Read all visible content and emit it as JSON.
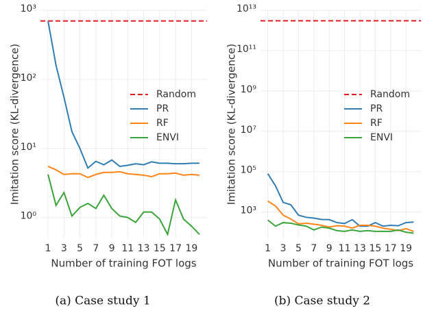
{
  "chart_data": [
    {
      "type": "line",
      "caption": "(a) Case study 1",
      "xlabel": "Number of training FOT logs",
      "ylabel": "Imitation score (KL-divergence)",
      "log_y": true,
      "grid": true,
      "legend": "center right",
      "x": [
        1,
        2,
        3,
        4,
        5,
        6,
        7,
        8,
        9,
        10,
        11,
        12,
        13,
        14,
        15,
        16,
        17,
        18,
        19,
        20
      ],
      "xlim": [
        0.05,
        20.95
      ],
      "xticks": [
        1,
        3,
        5,
        7,
        9,
        11,
        13,
        15,
        17,
        19
      ],
      "ylim": [
        0.5,
        1000
      ],
      "yticks": [
        {
          "value": 1,
          "label": "10⁰"
        },
        {
          "value": 10,
          "label": "10¹"
        },
        {
          "value": 100,
          "label": "10²"
        },
        {
          "value": 1000,
          "label": "10³"
        }
      ],
      "series": [
        {
          "name": "Random",
          "color": "#e8191c",
          "value": 700
        },
        {
          "name": "PR",
          "color": "#2f7cb3",
          "values": [
            700,
            160,
            55,
            17.5,
            10,
            5.2,
            6.5,
            5.8,
            6.8,
            5.5,
            5.7,
            6.0,
            5.8,
            6.4,
            6.1,
            6.1,
            6.0,
            6.0,
            6.1,
            6.1
          ]
        },
        {
          "name": "RF",
          "color": "#ff8418",
          "values": [
            5.5,
            4.9,
            4.2,
            4.3,
            4.3,
            3.8,
            4.2,
            4.5,
            4.5,
            4.6,
            4.3,
            4.2,
            4.1,
            3.9,
            4.3,
            4.3,
            4.4,
            4.1,
            4.2,
            4.1
          ]
        },
        {
          "name": "ENVI",
          "color": "#3aa43a",
          "values": [
            4.2,
            1.5,
            2.3,
            1.05,
            1.4,
            1.6,
            1.35,
            2.1,
            1.35,
            1.05,
            1.0,
            0.85,
            1.2,
            1.2,
            0.95,
            0.57,
            1.8,
            0.95,
            0.75,
            0.57
          ]
        }
      ]
    },
    {
      "type": "line",
      "caption": "(b) Case study 2",
      "xlabel": "Number of training FOT logs",
      "ylabel": "Imitation score (KL-divergence)",
      "log_y": true,
      "grid": true,
      "legend": "center right",
      "x": [
        1,
        2,
        3,
        4,
        5,
        6,
        7,
        8,
        9,
        10,
        11,
        12,
        13,
        14,
        15,
        16,
        17,
        18,
        19,
        20
      ],
      "xlim": [
        0.05,
        20.95
      ],
      "xticks": [
        1,
        3,
        5,
        7,
        9,
        11,
        13,
        15,
        17,
        19
      ],
      "ylim": [
        50,
        10000000000000
      ],
      "yticks": [
        {
          "value": 1000,
          "label": "10³"
        },
        {
          "value": 100000,
          "label": "10⁵"
        },
        {
          "value": 10000000,
          "label": "10⁷"
        },
        {
          "value": 1000000000,
          "label": "10⁹"
        },
        {
          "value": 100000000000,
          "label": "10¹¹"
        },
        {
          "value": 10000000000000,
          "label": "10¹³"
        }
      ],
      "series": [
        {
          "name": "Random",
          "color": "#e8191c",
          "value": 3000000000000
        },
        {
          "name": "PR",
          "color": "#2f7cb3",
          "values": [
            80000,
            20000,
            3000,
            2300,
            700,
            550,
            500,
            430,
            420,
            300,
            270,
            420,
            200,
            200,
            300,
            200,
            220,
            210,
            300,
            320
          ]
        },
        {
          "name": "RF",
          "color": "#ff8418",
          "values": [
            3500,
            2000,
            700,
            450,
            260,
            280,
            250,
            220,
            180,
            210,
            200,
            160,
            220,
            220,
            200,
            160,
            140,
            120,
            150,
            110
          ]
        },
        {
          "name": "ENVI",
          "color": "#3aa43a",
          "values": [
            400,
            200,
            300,
            280,
            230,
            200,
            130,
            180,
            160,
            120,
            110,
            130,
            110,
            120,
            110,
            110,
            110,
            130,
            100,
            90
          ]
        }
      ]
    }
  ]
}
